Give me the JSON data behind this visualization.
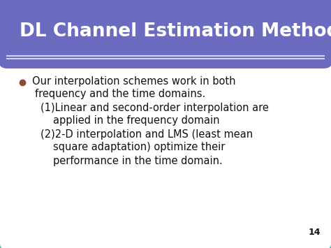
{
  "title": "DL Channel Estimation Methods",
  "title_color": "#ffffff",
  "title_bg_color": "#6b6bbf",
  "title_underline_color": "#b0b0e8",
  "slide_bg_color": "#ffffff",
  "slide_border_color": "#5fa89a",
  "outer_bg_color": "#d8d8d8",
  "bullet_marker_color": "#8b4a3a",
  "body_text_color": "#111111",
  "page_number": "14",
  "bullet_line1": "Our interpolation schemes work in both",
  "bullet_line2": "frequency and the time domains.",
  "sub1_line1": "(1)Linear and second-order interpolation are",
  "sub1_line2": "applied in the frequency domain",
  "sub2_line1": "(2)2-D interpolation and LMS (least mean",
  "sub2_line2": "square adaptation) optimize their",
  "sub2_line3": "performance in the time domain.",
  "figsize": [
    4.74,
    3.55
  ],
  "dpi": 100
}
